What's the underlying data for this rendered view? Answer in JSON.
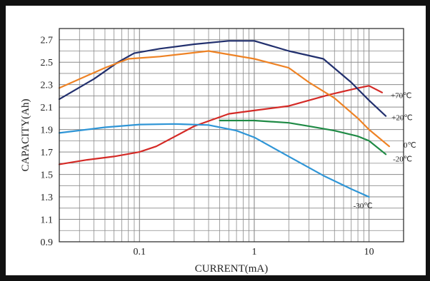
{
  "chart_data": {
    "type": "line",
    "xlabel": "CURRENT(mA)",
    "ylabel": "CAPACITY(Ah)",
    "xscale": "log",
    "xlim": [
      0.02,
      20
    ],
    "ylim": [
      0.9,
      2.8
    ],
    "grid": true,
    "x_ticks": [
      {
        "value": 0.1,
        "label": "0.1"
      },
      {
        "value": 1,
        "label": "1"
      },
      {
        "value": 10,
        "label": "10"
      }
    ],
    "y_ticks": [
      {
        "value": 0.9,
        "label": "0.9"
      },
      {
        "value": 1.1,
        "label": "1.1"
      },
      {
        "value": 1.3,
        "label": "1.3"
      },
      {
        "value": 1.5,
        "label": "1.5"
      },
      {
        "value": 1.7,
        "label": "1.7"
      },
      {
        "value": 1.9,
        "label": "1.9"
      },
      {
        "value": 2.1,
        "label": "2.1"
      },
      {
        "value": 2.3,
        "label": "2.3"
      },
      {
        "value": 2.5,
        "label": "2.5"
      },
      {
        "value": 2.7,
        "label": "2.7"
      }
    ],
    "series": [
      {
        "name": "+70℃",
        "color": "#d42a26",
        "points": [
          [
            0.02,
            1.59
          ],
          [
            0.035,
            1.63
          ],
          [
            0.06,
            1.66
          ],
          [
            0.1,
            1.7
          ],
          [
            0.14,
            1.75
          ],
          [
            0.3,
            1.93
          ],
          [
            0.6,
            2.04
          ],
          [
            1,
            2.07
          ],
          [
            2,
            2.11
          ],
          [
            4.5,
            2.21
          ],
          [
            8,
            2.27
          ],
          [
            10,
            2.29
          ],
          [
            13,
            2.23
          ]
        ]
      },
      {
        "name": "+20℃",
        "color": "#22306e",
        "points": [
          [
            0.02,
            2.17
          ],
          [
            0.04,
            2.35
          ],
          [
            0.065,
            2.5
          ],
          [
            0.09,
            2.58
          ],
          [
            0.15,
            2.62
          ],
          [
            0.3,
            2.66
          ],
          [
            0.6,
            2.69
          ],
          [
            1,
            2.69
          ],
          [
            2,
            2.6
          ],
          [
            4,
            2.53
          ],
          [
            7,
            2.32
          ],
          [
            10,
            2.16
          ],
          [
            14,
            2.02
          ]
        ]
      },
      {
        "name": "0℃",
        "color": "#ee8224",
        "points": [
          [
            0.02,
            2.27
          ],
          [
            0.05,
            2.45
          ],
          [
            0.08,
            2.53
          ],
          [
            0.15,
            2.55
          ],
          [
            0.4,
            2.6
          ],
          [
            1,
            2.53
          ],
          [
            2,
            2.45
          ],
          [
            3,
            2.32
          ],
          [
            5,
            2.18
          ],
          [
            8,
            2.0
          ],
          [
            10,
            1.9
          ],
          [
            15,
            1.75
          ]
        ]
      },
      {
        "name": "-20℃",
        "color": "#1f8a45",
        "points": [
          [
            0.5,
            1.98
          ],
          [
            1,
            1.98
          ],
          [
            2,
            1.96
          ],
          [
            3,
            1.93
          ],
          [
            5,
            1.89
          ],
          [
            8,
            1.84
          ],
          [
            10,
            1.8
          ],
          [
            14,
            1.68
          ]
        ]
      },
      {
        "name": "-30℃",
        "color": "#2f95d6",
        "points": [
          [
            0.02,
            1.87
          ],
          [
            0.05,
            1.92
          ],
          [
            0.1,
            1.945
          ],
          [
            0.2,
            1.95
          ],
          [
            0.4,
            1.94
          ],
          [
            0.7,
            1.89
          ],
          [
            1,
            1.83
          ],
          [
            2,
            1.66
          ],
          [
            4,
            1.49
          ],
          [
            7,
            1.37
          ],
          [
            10,
            1.3
          ]
        ]
      }
    ],
    "labels": [
      {
        "text": "+70℃",
        "series": 0
      },
      {
        "text": "+20℃",
        "series": 1
      },
      {
        "text": "0℃",
        "series": 2
      },
      {
        "text": "-20℃",
        "series": 3
      },
      {
        "text": "-30℃",
        "series": 4
      }
    ]
  }
}
